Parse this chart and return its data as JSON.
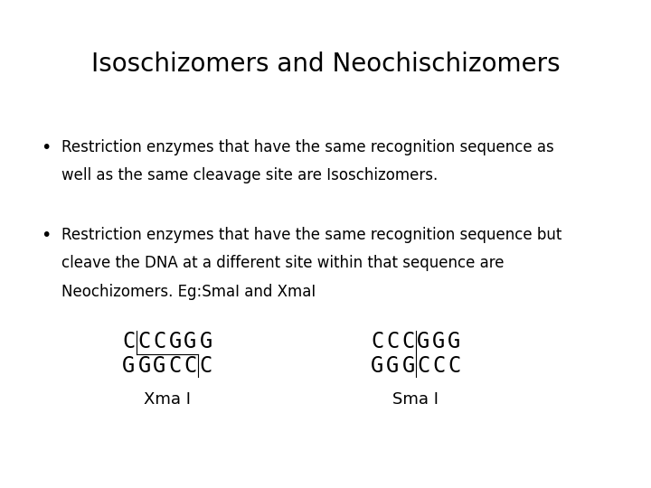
{
  "title": "Isoschizomers and Neochischizomers",
  "bullet1_line1": "Restriction enzymes that have the same recognition sequence as",
  "bullet1_line2": "well as the same cleavage site are Isoschizomers.",
  "bullet2_line1": "Restriction enzymes that have the same recognition sequence but",
  "bullet2_line2": "cleave the DNA at a different site within that sequence are",
  "bullet2_line3": "Neochizomers. Eg:SmaI and XmaI",
  "xma_label": "Xma I",
  "sma_label": "Sma I",
  "top_seq": [
    "C",
    "C",
    "C",
    "G",
    "G",
    "G"
  ],
  "bot_seq": [
    "G",
    "G",
    "G",
    "C",
    "C",
    "C"
  ],
  "bg_color": "#ffffff",
  "text_color": "#000000",
  "title_fontsize": 20,
  "body_fontsize": 12,
  "seq_fontsize": 17
}
